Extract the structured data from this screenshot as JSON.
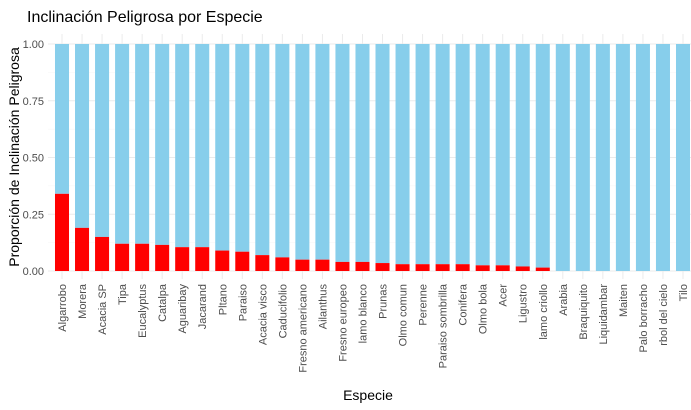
{
  "chart_data": {
    "type": "bar",
    "stacked": true,
    "percent": true,
    "title": "Inclinación Peligrosa por Especie",
    "xlabel": "Especie",
    "ylabel": "Proporción de Inclinación Peligrosa",
    "ylim": [
      0,
      1
    ],
    "yticks": [
      "0.00",
      "0.25",
      "0.50",
      "0.75",
      "1.00"
    ],
    "grid": true,
    "legend": "none",
    "colors": {
      "peligrosa": "#ff0000",
      "no_peligrosa": "#87ceeb"
    },
    "categories": [
      "Algarrobo",
      "Morera",
      "Acacia SP",
      "Tipa",
      "Eucalyptus",
      "Catalpa",
      "Aguaribay",
      "Jacarand",
      "Pltano",
      "Paraiso",
      "Acacia visco",
      "Caducifolio",
      "Fresno americano",
      "Ailanthus",
      "Fresno europeo",
      "lamo blanco",
      "Prunas",
      "Olmo comun",
      "Perenne",
      "Paraiso sombrilla",
      "Conifera",
      "Olmo bola",
      "Acer",
      "Ligustro",
      "lamo criollo",
      "Arabia",
      "Braquiquito",
      "Liquidambar",
      "Maiten",
      "Palo borracho",
      "rbol del cielo",
      "Tilo"
    ],
    "series": [
      {
        "key": "peligrosa",
        "values": [
          0.34,
          0.19,
          0.15,
          0.12,
          0.12,
          0.115,
          0.105,
          0.105,
          0.09,
          0.085,
          0.07,
          0.06,
          0.05,
          0.05,
          0.04,
          0.04,
          0.035,
          0.03,
          0.03,
          0.03,
          0.03,
          0.025,
          0.025,
          0.02,
          0.015,
          0,
          0,
          0,
          0,
          0,
          0,
          0
        ]
      },
      {
        "key": "no_peligrosa",
        "values": [
          0.66,
          0.81,
          0.85,
          0.88,
          0.88,
          0.885,
          0.895,
          0.895,
          0.91,
          0.915,
          0.93,
          0.94,
          0.95,
          0.95,
          0.96,
          0.96,
          0.965,
          0.97,
          0.97,
          0.97,
          0.97,
          0.975,
          0.975,
          0.98,
          0.985,
          1,
          1,
          1,
          1,
          1,
          1,
          1
        ]
      }
    ]
  }
}
